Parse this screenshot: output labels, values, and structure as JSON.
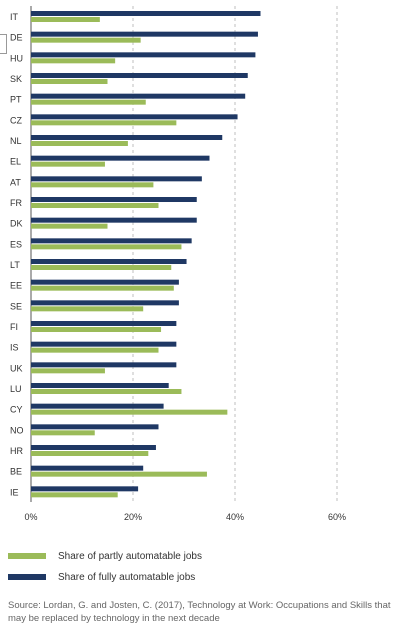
{
  "chart_data": {
    "type": "bar",
    "orientation": "horizontal",
    "categories": [
      "IT",
      "DE",
      "HU",
      "SK",
      "PT",
      "CZ",
      "NL",
      "EL",
      "AT",
      "FR",
      "DK",
      "ES",
      "LT",
      "EE",
      "SE",
      "FI",
      "IS",
      "UK",
      "LU",
      "CY",
      "NO",
      "HR",
      "BE",
      "IE"
    ],
    "series": [
      {
        "name": "Share of partly automatable jobs",
        "color": "#9bbb59",
        "values": [
          13.5,
          21.5,
          16.5,
          15,
          22.5,
          28.5,
          19,
          14.5,
          24,
          25,
          15,
          29.5,
          27.5,
          28,
          22,
          25.5,
          25,
          14.5,
          29.5,
          38.5,
          12.5,
          23,
          34.5,
          17
        ]
      },
      {
        "name": "Share of fully automatable jobs",
        "color": "#1f3864",
        "values": [
          45,
          44.5,
          44,
          42.5,
          42,
          40.5,
          37.5,
          35,
          33.5,
          32.5,
          32.5,
          31.5,
          30.5,
          29,
          29,
          28.5,
          28.5,
          28.5,
          27,
          26,
          25,
          24.5,
          22,
          21
        ]
      }
    ],
    "xlim": [
      0,
      60
    ],
    "xticks": [
      "0%",
      "20%",
      "40%",
      "60%"
    ],
    "grid": true,
    "legend_position": "bottom"
  },
  "source": "Source: Lordan, G. and Josten, C. (2017), Technology at Work: Occupations and Skills that may be replaced by technology in the next decade"
}
